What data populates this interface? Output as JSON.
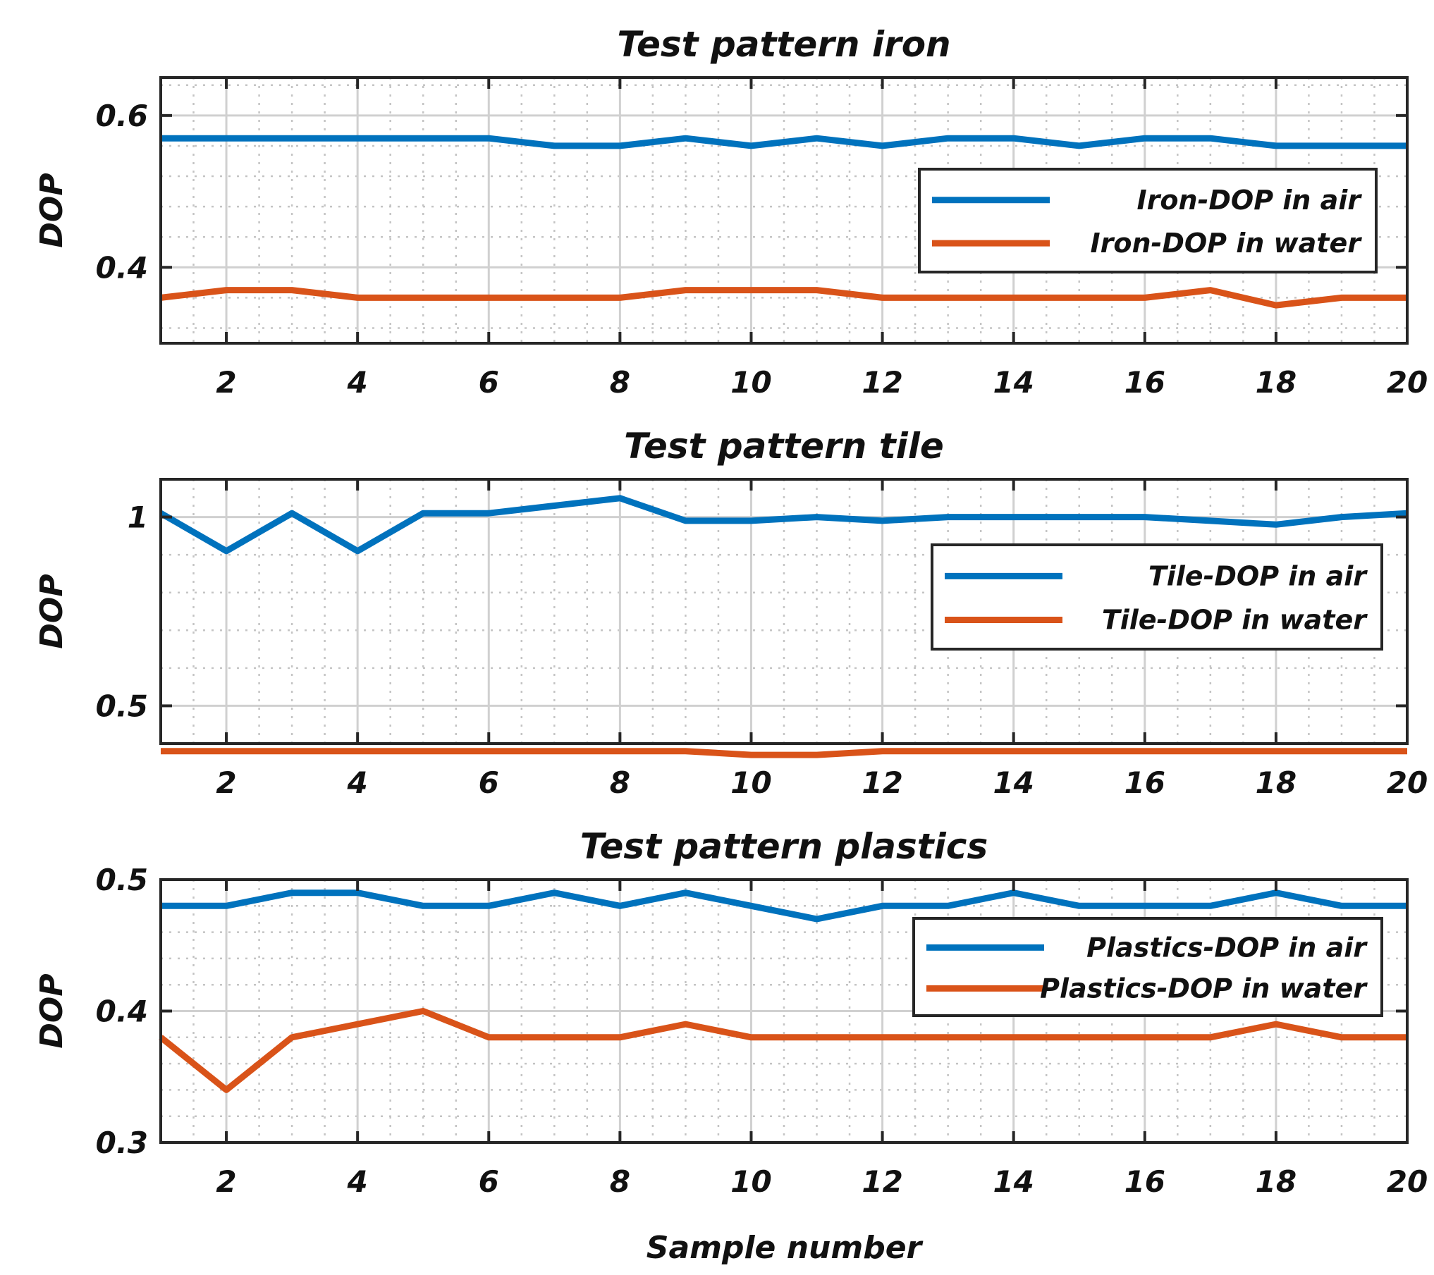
{
  "figure": {
    "xlabel": "Sample number"
  },
  "colors": {
    "air": "#0072BD",
    "water": "#D95319",
    "axes": "#262626",
    "grid_major": "#d0d0d0",
    "grid_minor": "#c4c4c4"
  },
  "chart_data": [
    {
      "type": "line",
      "title": "Test pattern iron",
      "xlabel": "",
      "ylabel": "DOP",
      "xlim": [
        1,
        20
      ],
      "ylim": [
        0.3,
        0.65
      ],
      "grid": true,
      "minor_grid": true,
      "legend_position": "right",
      "xticks": [
        2,
        4,
        6,
        8,
        10,
        12,
        14,
        16,
        18,
        20
      ],
      "xtick_labels": [
        "2",
        "4",
        "6",
        "8",
        "10",
        "12",
        "14",
        "16",
        "18",
        "20"
      ],
      "yticks": [
        0.4,
        0.6
      ],
      "ytick_labels": [
        "0.4",
        "0.6"
      ],
      "x": [
        1,
        2,
        3,
        4,
        5,
        6,
        7,
        8,
        9,
        10,
        11,
        12,
        13,
        14,
        15,
        16,
        17,
        18,
        19,
        20
      ],
      "series": [
        {
          "name": "Iron-DOP in air",
          "color": "#0072BD",
          "values": [
            0.57,
            0.57,
            0.57,
            0.57,
            0.57,
            0.57,
            0.56,
            0.56,
            0.57,
            0.56,
            0.57,
            0.56,
            0.57,
            0.57,
            0.56,
            0.57,
            0.57,
            0.56,
            0.56,
            0.56
          ]
        },
        {
          "name": "Iron-DOP in water",
          "color": "#D95319",
          "values": [
            0.36,
            0.37,
            0.37,
            0.36,
            0.36,
            0.36,
            0.36,
            0.36,
            0.37,
            0.37,
            0.37,
            0.36,
            0.36,
            0.36,
            0.36,
            0.36,
            0.37,
            0.35,
            0.36,
            0.36
          ]
        }
      ]
    },
    {
      "type": "line",
      "title": "Test pattern tile",
      "xlabel": "",
      "ylabel": "DOP",
      "xlim": [
        1,
        20
      ],
      "ylim": [
        0.4,
        1.1
      ],
      "grid": true,
      "minor_grid": true,
      "legend_position": "right",
      "xticks": [
        2,
        4,
        6,
        8,
        10,
        12,
        14,
        16,
        18,
        20
      ],
      "xtick_labels": [
        "2",
        "4",
        "6",
        "8",
        "10",
        "12",
        "14",
        "16",
        "18",
        "20"
      ],
      "yticks": [
        0.5,
        1.0
      ],
      "ytick_labels": [
        "0.5",
        "1"
      ],
      "x": [
        1,
        2,
        3,
        4,
        5,
        6,
        7,
        8,
        9,
        10,
        11,
        12,
        13,
        14,
        15,
        16,
        17,
        18,
        19,
        20
      ],
      "series": [
        {
          "name": "Tile-DOP in air",
          "color": "#0072BD",
          "values": [
            1.01,
            0.91,
            1.01,
            0.91,
            1.01,
            1.01,
            1.03,
            1.05,
            0.99,
            0.99,
            1.0,
            0.99,
            1.0,
            1.0,
            1.0,
            1.0,
            0.99,
            0.98,
            1.0,
            1.01
          ]
        },
        {
          "name": "Tile-DOP in water",
          "color": "#D95319",
          "values": [
            0.38,
            0.38,
            0.38,
            0.38,
            0.38,
            0.38,
            0.38,
            0.38,
            0.38,
            0.37,
            0.37,
            0.38,
            0.38,
            0.38,
            0.38,
            0.38,
            0.38,
            0.38,
            0.38,
            0.38
          ]
        }
      ]
    },
    {
      "type": "line",
      "title": "Test pattern plastics",
      "xlabel": "Sample number",
      "ylabel": "DOP",
      "xlim": [
        1,
        20
      ],
      "ylim": [
        0.3,
        0.5
      ],
      "grid": true,
      "minor_grid": true,
      "legend_position": "right",
      "xticks": [
        2,
        4,
        6,
        8,
        10,
        12,
        14,
        16,
        18,
        20
      ],
      "xtick_labels": [
        "2",
        "4",
        "6",
        "8",
        "10",
        "12",
        "14",
        "16",
        "18",
        "20"
      ],
      "yticks": [
        0.3,
        0.4,
        0.5
      ],
      "ytick_labels": [
        "0.3",
        "0.4",
        "0.5"
      ],
      "x": [
        1,
        2,
        3,
        4,
        5,
        6,
        7,
        8,
        9,
        10,
        11,
        12,
        13,
        14,
        15,
        16,
        17,
        18,
        19,
        20
      ],
      "series": [
        {
          "name": "Plastics-DOP in air",
          "color": "#0072BD",
          "values": [
            0.48,
            0.48,
            0.49,
            0.49,
            0.48,
            0.48,
            0.49,
            0.48,
            0.49,
            0.48,
            0.47,
            0.48,
            0.48,
            0.49,
            0.48,
            0.48,
            0.48,
            0.49,
            0.48,
            0.48
          ]
        },
        {
          "name": "Plastics-DOP in water",
          "color": "#D95319",
          "values": [
            0.38,
            0.34,
            0.38,
            0.39,
            0.4,
            0.38,
            0.38,
            0.38,
            0.39,
            0.38,
            0.38,
            0.38,
            0.38,
            0.38,
            0.38,
            0.38,
            0.38,
            0.39,
            0.38,
            0.38
          ]
        }
      ]
    }
  ]
}
